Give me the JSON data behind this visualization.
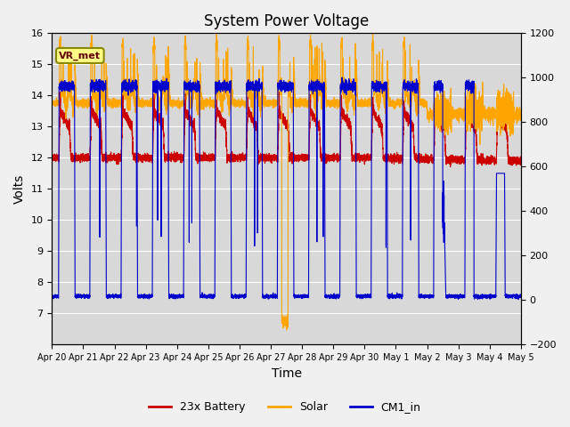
{
  "title": "System Power Voltage",
  "xlabel": "Time",
  "ylabel_left": "Volts",
  "ylim_left": [
    6.0,
    16.0
  ],
  "ylim_right": [
    -200,
    1200
  ],
  "x_tick_labels": [
    "Apr 20",
    "Apr 21",
    "Apr 22",
    "Apr 23",
    "Apr 24",
    "Apr 25",
    "Apr 26",
    "Apr 27",
    "Apr 28",
    "Apr 29",
    "Apr 30",
    "May 1",
    "May 2",
    "May 3",
    "May 4",
    "May 5"
  ],
  "yticks_left": [
    7.0,
    8.0,
    9.0,
    10.0,
    11.0,
    12.0,
    13.0,
    14.0,
    15.0,
    16.0
  ],
  "yticks_right": [
    -200,
    0,
    200,
    400,
    600,
    800,
    1000,
    1200
  ],
  "color_battery": "#CC0000",
  "color_solar": "#FFA500",
  "color_cm1": "#0000CC",
  "background_color": "#D8D8D8",
  "vr_met_label": "VR_met",
  "legend_labels": [
    "23x Battery",
    "Solar",
    "CM1_in"
  ],
  "title_fontsize": 12,
  "axis_fontsize": 10,
  "tick_fontsize": 8
}
